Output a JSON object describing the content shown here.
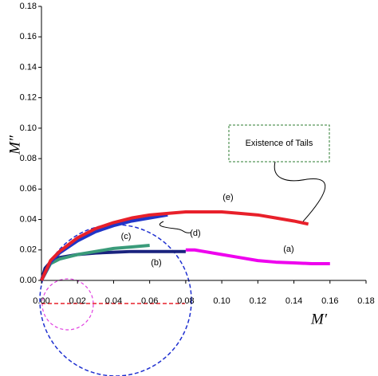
{
  "chart_data": {
    "type": "line",
    "xlabel": "M′",
    "ylabel": "M″",
    "xlim": [
      0,
      0.18
    ],
    "ylim": [
      0,
      0.18
    ],
    "xticks": [
      {
        "value": 0,
        "label": "0.00"
      },
      {
        "value": 0.02,
        "label": "0.02"
      },
      {
        "value": 0.04,
        "label": "0.04"
      },
      {
        "value": 0.06,
        "label": "0.06"
      },
      {
        "value": 0.08,
        "label": "0.08"
      },
      {
        "value": 0.1,
        "label": "0.10"
      },
      {
        "value": 0.12,
        "label": "0.12"
      },
      {
        "value": 0.14,
        "label": "0.14"
      },
      {
        "value": 0.16,
        "label": "0.16"
      },
      {
        "value": 0.18,
        "label": "0.18"
      }
    ],
    "yticks": [
      {
        "value": 0,
        "label": "0.00"
      },
      {
        "value": 0.02,
        "label": "0.02"
      },
      {
        "value": 0.04,
        "label": "0.04"
      },
      {
        "value": 0.06,
        "label": "0.06"
      },
      {
        "value": 0.08,
        "label": "0.08"
      },
      {
        "value": 0.1,
        "label": "0.10"
      },
      {
        "value": 0.12,
        "label": "0.12"
      },
      {
        "value": 0.14,
        "label": "0.14"
      },
      {
        "value": 0.16,
        "label": "0.16"
      },
      {
        "value": 0.18,
        "label": "0.18"
      }
    ],
    "annotation": "Existence of Tails",
    "series": [
      {
        "name": "(a)",
        "color": "#ee00ee",
        "x": [
          0.08,
          0.085,
          0.09,
          0.1,
          0.11,
          0.12,
          0.13,
          0.14,
          0.15,
          0.16
        ],
        "values": [
          0.02,
          0.02,
          0.019,
          0.017,
          0.015,
          0.013,
          0.012,
          0.0115,
          0.011,
          0.011
        ]
      },
      {
        "name": "(b)",
        "color": "#1a237e",
        "x": [
          0,
          0.002,
          0.005,
          0.01,
          0.02,
          0.03,
          0.04,
          0.05,
          0.06,
          0.07,
          0.08
        ],
        "values": [
          0,
          0.008,
          0.012,
          0.015,
          0.017,
          0.018,
          0.0185,
          0.019,
          0.019,
          0.019,
          0.019
        ]
      },
      {
        "name": "(c)",
        "color": "#3a9b7a",
        "x": [
          0,
          0.005,
          0.01,
          0.02,
          0.03,
          0.04,
          0.05,
          0.06
        ],
        "values": [
          0,
          0.011,
          0.014,
          0.017,
          0.019,
          0.021,
          0.022,
          0.023
        ]
      },
      {
        "name": "(d)",
        "color": "#2035c8",
        "x": [
          0,
          0.005,
          0.01,
          0.02,
          0.03,
          0.04,
          0.05,
          0.06,
          0.07
        ],
        "values": [
          0,
          0.012,
          0.018,
          0.026,
          0.032,
          0.036,
          0.039,
          0.041,
          0.043
        ]
      },
      {
        "name": "(e)",
        "color": "#e8202a",
        "x": [
          0,
          0.005,
          0.01,
          0.02,
          0.03,
          0.04,
          0.05,
          0.06,
          0.07,
          0.08,
          0.09,
          0.1,
          0.11,
          0.12,
          0.13,
          0.14,
          0.148
        ],
        "values": [
          0,
          0.013,
          0.019,
          0.028,
          0.034,
          0.038,
          0.041,
          0.043,
          0.044,
          0.045,
          0.045,
          0.045,
          0.044,
          0.043,
          0.041,
          0.039,
          0.037
        ]
      }
    ]
  }
}
